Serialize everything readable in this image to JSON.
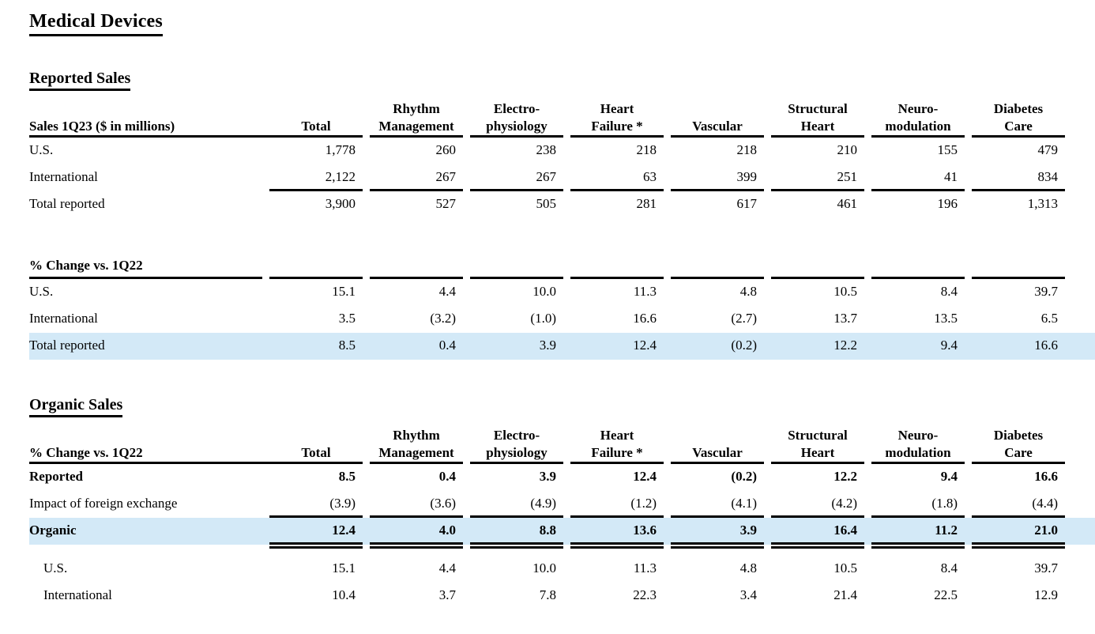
{
  "title": "Medical Devices",
  "colors": {
    "highlight": "#d3e9f7"
  },
  "cols": [
    {
      "l1": "Total",
      "l2": ""
    },
    {
      "l1": "Rhythm",
      "l2": "Management"
    },
    {
      "l1": "Electro-",
      "l2": "physiology"
    },
    {
      "l1": "Heart",
      "l2": "Failure *"
    },
    {
      "l1": "Vascular",
      "l2": ""
    },
    {
      "l1": "Structural",
      "l2": "Heart"
    },
    {
      "l1": "Neuro-",
      "l2": "modulation"
    },
    {
      "l1": "Diabetes",
      "l2": "Care"
    }
  ],
  "reported_sales": {
    "heading": "Reported Sales",
    "label_header": "Sales 1Q23 ($ in millions)",
    "rows": [
      {
        "label": "U.S.",
        "v": [
          "1,778",
          "260",
          "238",
          "218",
          "218",
          "210",
          "155",
          "479"
        ]
      },
      {
        "label": "International",
        "v": [
          "2,122",
          "267",
          "267",
          "63",
          "399",
          "251",
          "41",
          "834"
        ]
      },
      {
        "label": "Total reported",
        "v": [
          "3,900",
          "527",
          "505",
          "281",
          "617",
          "461",
          "196",
          "1,313"
        ]
      }
    ]
  },
  "pct_change": {
    "heading": "% Change vs. 1Q22",
    "rows": [
      {
        "label": "U.S.",
        "v": [
          "15.1",
          "4.4",
          "10.0",
          "11.3",
          "4.8",
          "10.5",
          "8.4",
          "39.7"
        ]
      },
      {
        "label": "International",
        "v": [
          "3.5",
          "(3.2)",
          "(1.0)",
          "16.6",
          "(2.7)",
          "13.7",
          "13.5",
          "6.5"
        ]
      },
      {
        "label": "Total reported",
        "v": [
          "8.5",
          "0.4",
          "3.9",
          "12.4",
          "(0.2)",
          "12.2",
          "9.4",
          "16.6"
        ]
      }
    ]
  },
  "organic_sales": {
    "heading": "Organic Sales",
    "label_header": "% Change vs. 1Q22",
    "rows": [
      {
        "label": "Reported",
        "v": [
          "8.5",
          "0.4",
          "3.9",
          "12.4",
          "(0.2)",
          "12.2",
          "9.4",
          "16.6"
        ]
      },
      {
        "label": "Impact of foreign exchange",
        "v": [
          "(3.9)",
          "(3.6)",
          "(4.9)",
          "(1.2)",
          "(4.1)",
          "(4.2)",
          "(1.8)",
          "(4.4)"
        ]
      },
      {
        "label": "Organic",
        "v": [
          "12.4",
          "4.0",
          "8.8",
          "13.6",
          "3.9",
          "16.4",
          "11.2",
          "21.0"
        ]
      },
      {
        "label": "U.S.",
        "v": [
          "15.1",
          "4.4",
          "10.0",
          "11.3",
          "4.8",
          "10.5",
          "8.4",
          "39.7"
        ]
      },
      {
        "label": "International",
        "v": [
          "10.4",
          "3.7",
          "7.8",
          "22.3",
          "3.4",
          "21.4",
          "22.5",
          "12.9"
        ]
      }
    ]
  }
}
